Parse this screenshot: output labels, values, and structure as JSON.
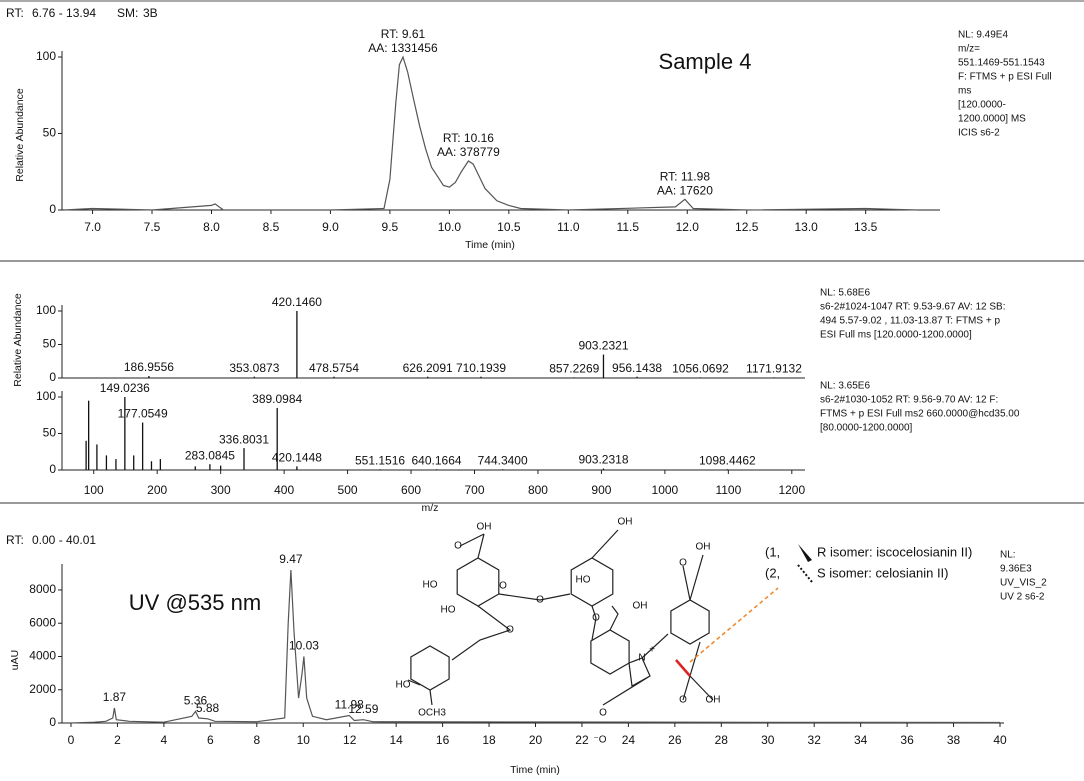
{
  "chart_data": [
    {
      "type": "line",
      "header": [
        {
          "text": "RT:",
          "color": "#000000"
        },
        {
          "text": "6.76 - 13.94",
          "color": "#1f2f9e"
        },
        {
          "text": "SM:",
          "color": "#000000"
        },
        {
          "text": "3B",
          "color": "#1f2f9e"
        }
      ],
      "title": "Sample 4",
      "ylabel": "Relative Abundance",
      "xlabel": "Time (min)",
      "x": [
        6.76,
        7.0,
        7.5,
        8.0,
        8.03,
        8.1,
        9.0,
        9.45,
        9.5,
        9.55,
        9.58,
        9.61,
        9.65,
        9.7,
        9.75,
        9.8,
        9.85,
        9.9,
        9.95,
        10.0,
        10.05,
        10.1,
        10.16,
        10.2,
        10.25,
        10.3,
        10.4,
        10.5,
        10.6,
        11.0,
        11.9,
        11.98,
        12.05,
        12.5,
        13.5,
        13.94
      ],
      "values": [
        0,
        1,
        0,
        3,
        4,
        0,
        0,
        1,
        20,
        70,
        95,
        100,
        90,
        72,
        55,
        40,
        28,
        22,
        16,
        15,
        18,
        25,
        32,
        30,
        22,
        14,
        6,
        3,
        1,
        0,
        2,
        7,
        1,
        0,
        1,
        0
      ],
      "color": "#555555",
      "xlim": [
        6.76,
        13.94
      ],
      "ylim": [
        0,
        100
      ],
      "xticks": [
        {
          "value": 7,
          "label": "7.0"
        },
        {
          "value": 7.5,
          "label": "7.5"
        },
        {
          "value": 8,
          "label": "8.0"
        },
        {
          "value": 8.5,
          "label": "8.5"
        },
        {
          "value": 9,
          "label": "9.0"
        },
        {
          "value": 9.5,
          "label": "9.5"
        },
        {
          "value": 10,
          "label": "10.0"
        },
        {
          "value": 10.5,
          "label": "10.5"
        },
        {
          "value": 11,
          "label": "11.0"
        },
        {
          "value": 11.5,
          "label": "11.5"
        },
        {
          "value": 12,
          "label": "12.0"
        },
        {
          "value": 12.5,
          "label": "12.5"
        },
        {
          "value": 13,
          "label": "13.0"
        },
        {
          "value": 13.5,
          "label": "13.5"
        }
      ],
      "yticks": [
        0,
        50,
        100
      ],
      "annotations": [
        {
          "x": 9.61,
          "lines": [
            "RT: 9.61",
            "AA: 1331456"
          ]
        },
        {
          "x": 10.16,
          "lines": [
            "RT: 10.16",
            "AA: 378779"
          ]
        },
        {
          "x": 11.98,
          "lines": [
            "RT: 11.98",
            "AA: 17620"
          ]
        }
      ],
      "info": [
        "NL: 9.49E4",
        "m/z=",
        "551.1469-551.1543",
        "F: FTMS + p ESI Full",
        "ms",
        "[120.0000-",
        "1200.0000]  MS",
        "ICIS s6-2"
      ]
    },
    {
      "type": "stick",
      "ylabel": "Relative Abundance",
      "x": [
        186.9556,
        353.0873,
        420.146,
        478.5754,
        626.2091,
        710.1939,
        857.2269,
        903.2321,
        956.1438,
        1056.0692,
        1171.9132
      ],
      "x_labels": [
        "186.9556",
        "353.0873",
        "420.1460",
        "478.5754",
        "626.2091",
        "710.1939",
        "857.2269",
        "903.2321",
        "956.1438",
        "1056.0692",
        "1171.9132"
      ],
      "values": [
        3,
        2,
        100,
        2,
        2,
        2,
        1,
        35,
        2,
        1,
        1
      ],
      "color": "#111111",
      "xlim": [
        50,
        1220
      ],
      "ylim": [
        0,
        100
      ],
      "yticks": [
        0,
        50,
        100
      ],
      "info": [
        "NL: 5.68E6",
        "s6-2#1024-1047  RT: 9.53-9.67  AV: 12 SB:",
        "494  5.57-9.02 , 11.03-13.87  T: FTMS + p",
        "ESI Full ms [120.0000-1200.0000]"
      ]
    },
    {
      "type": "stick",
      "xlabel": "m/z",
      "x": [
        88,
        92,
        105,
        120,
        135,
        149.0236,
        163,
        177.0549,
        191,
        205,
        260,
        283.0845,
        300,
        336.8031,
        389.0984,
        420.1448,
        551.1516,
        640.1664,
        744.34,
        903.2318,
        1098.4462
      ],
      "x_labels": [
        null,
        null,
        null,
        null,
        null,
        "149.0236",
        null,
        "177.0549",
        null,
        null,
        null,
        "283.0845",
        null,
        "336.8031",
        "389.0984",
        "420.1448",
        "551.1516",
        "640.1664",
        "744.3400",
        "903.2318",
        "1098.4462"
      ],
      "values": [
        40,
        95,
        35,
        20,
        15,
        100,
        20,
        65,
        12,
        15,
        5,
        8,
        6,
        30,
        85,
        5,
        1,
        1,
        1,
        2,
        1
      ],
      "color": "#111111",
      "xlim": [
        50,
        1220
      ],
      "ylim": [
        0,
        100
      ],
      "yticks": [
        0,
        50,
        100
      ],
      "xticks": [
        100,
        200,
        300,
        400,
        500,
        600,
        700,
        800,
        900,
        1000,
        1100,
        1200
      ],
      "info": [
        "NL: 3.65E6",
        "s6-2#1030-1052  RT: 9.56-9.70  AV: 12 F:",
        "FTMS + p ESI Full ms2 660.0000@hcd35.00",
        "[80.0000-1200.0000]"
      ]
    },
    {
      "type": "line",
      "header": [
        {
          "text": "RT:",
          "color": "#000000"
        },
        {
          "text": "0.00 - 40.01",
          "color": "#1f2f9e"
        }
      ],
      "title": "UV @535 nm",
      "ylabel": "uAU",
      "xlabel": "Time (min)",
      "x": [
        0,
        1.0,
        1.5,
        1.8,
        1.87,
        1.95,
        2.5,
        4,
        5.2,
        5.36,
        5.5,
        5.88,
        6.2,
        8,
        9.2,
        9.35,
        9.47,
        9.6,
        9.8,
        9.95,
        10.03,
        10.15,
        10.4,
        11,
        11.98,
        12.2,
        12.59,
        13,
        20,
        30,
        40
      ],
      "values": [
        0,
        50,
        100,
        300,
        900,
        200,
        100,
        50,
        400,
        700,
        300,
        250,
        100,
        80,
        300,
        6000,
        9200,
        5500,
        1500,
        3000,
        4000,
        1500,
        400,
        200,
        450,
        150,
        200,
        80,
        60,
        40,
        30
      ],
      "color": "#555555",
      "xlim": [
        0,
        40
      ],
      "ylim": [
        0,
        9200
      ],
      "xticks": [
        0,
        2,
        4,
        6,
        8,
        10,
        12,
        14,
        16,
        18,
        20,
        22,
        24,
        26,
        28,
        30,
        32,
        34,
        36,
        38,
        40
      ],
      "yticks": [
        0,
        2000,
        4000,
        6000,
        8000
      ],
      "peaks": [
        1.87,
        5.36,
        5.88,
        9.47,
        10.03,
        11.98,
        12.59
      ],
      "info": [
        "NL:",
        "9.36E3",
        "UV_VIS_2",
        "UV 2 s6-2"
      ],
      "legend_notes": [
        "(1,",
        "R isomer: iscocelosianin II)",
        "(2,",
        "S isomer: celosianin II)"
      ],
      "structure_labels": [
        "OH",
        "O",
        "HO",
        "HO",
        "O",
        "O",
        "OH",
        "HO",
        "O",
        "OH",
        "N",
        "+",
        "OH",
        "O",
        "O",
        "HO",
        "OCH3",
        "O",
        "⁻O",
        "OH",
        "O"
      ]
    }
  ]
}
